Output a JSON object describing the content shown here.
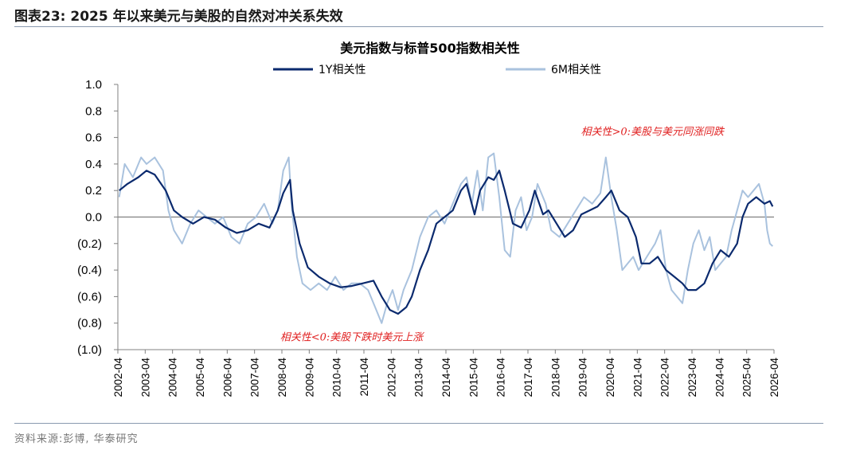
{
  "header": {
    "figure_title": "图表23:  2025 年以来美元与美股的自然对冲关系失效"
  },
  "source": "资料来源:彭博, 华泰研究",
  "colors": {
    "series_1y": "#0b2a6e",
    "series_6m": "#a9c2de",
    "zero_line": "#808080",
    "annotation": "#e02020",
    "rule": "#8a9ab0"
  },
  "chart_data": {
    "type": "line",
    "title": "美元指数与标普500指数相关性",
    "legend_position": "top",
    "ylim": [
      -1.0,
      1.0
    ],
    "yticks": [
      1.0,
      0.8,
      0.6,
      0.4,
      0.2,
      0.0,
      -0.2,
      -0.4,
      -0.6,
      -0.8,
      -1.0
    ],
    "ytick_labels": [
      "1.0",
      "0.8",
      "0.6",
      "0.4",
      "0.2",
      "0.0",
      "(0.2)",
      "(0.4)",
      "(0.6)",
      "(0.8)",
      "(1.0)"
    ],
    "xlim": [
      2002.25,
      2026.25
    ],
    "xtick_labels": [
      "2002-04",
      "2003-04",
      "2004-04",
      "2005-04",
      "2006-04",
      "2007-04",
      "2008-04",
      "2009-04",
      "2010-04",
      "2011-04",
      "2012-04",
      "2013-04",
      "2014-04",
      "2015-04",
      "2016-04",
      "2017-04",
      "2018-04",
      "2019-04",
      "2020-04",
      "2021-04",
      "2022-04",
      "2023-04",
      "2024-04",
      "2025-04",
      "2026-04"
    ],
    "annotations": [
      {
        "text": "相关性>0:美股与美元同涨同跌",
        "x": 2021.8,
        "y": 0.62
      },
      {
        "text": "相关性<0:美股下跌时美元上涨",
        "x": 2010.8,
        "y": -0.93
      }
    ],
    "series": [
      {
        "name": "1Y相关性",
        "x": [
          2002.3,
          2002.6,
          2003.0,
          2003.3,
          2003.6,
          2004.0,
          2004.3,
          2004.6,
          2005.0,
          2005.4,
          2005.8,
          2006.2,
          2006.6,
          2007.0,
          2007.4,
          2007.8,
          2008.1,
          2008.3,
          2008.55,
          2008.65,
          2008.9,
          2009.2,
          2009.6,
          2010.0,
          2010.4,
          2010.8,
          2011.2,
          2011.6,
          2011.9,
          2012.2,
          2012.5,
          2012.8,
          2013.0,
          2013.3,
          2013.6,
          2013.9,
          2014.2,
          2014.5,
          2014.8,
          2015.0,
          2015.3,
          2015.5,
          2015.8,
          2016.0,
          2016.2,
          2016.4,
          2016.7,
          2017.0,
          2017.3,
          2017.5,
          2017.8,
          2018.0,
          2018.3,
          2018.6,
          2018.9,
          2019.2,
          2019.5,
          2019.8,
          2020.1,
          2020.3,
          2020.6,
          2020.9,
          2021.0,
          2021.2,
          2021.4,
          2021.7,
          2022.0,
          2022.3,
          2022.6,
          2022.9,
          2023.1,
          2023.4,
          2023.7,
          2024.0,
          2024.3,
          2024.6,
          2024.9,
          2025.1,
          2025.3,
          2025.6,
          2025.9,
          2026.1,
          2026.2
        ],
        "values": [
          0.2,
          0.25,
          0.3,
          0.35,
          0.32,
          0.2,
          0.05,
          0.0,
          -0.05,
          0.0,
          -0.02,
          -0.08,
          -0.12,
          -0.1,
          -0.05,
          -0.08,
          0.05,
          0.18,
          0.28,
          0.05,
          -0.2,
          -0.38,
          -0.45,
          -0.5,
          -0.53,
          -0.52,
          -0.5,
          -0.48,
          -0.6,
          -0.7,
          -0.73,
          -0.68,
          -0.6,
          -0.4,
          -0.25,
          -0.05,
          0.0,
          0.05,
          0.2,
          0.25,
          0.02,
          0.2,
          0.3,
          0.28,
          0.35,
          0.2,
          -0.05,
          -0.08,
          0.05,
          0.2,
          0.02,
          0.05,
          -0.05,
          -0.15,
          -0.1,
          0.02,
          0.05,
          0.08,
          0.15,
          0.2,
          0.05,
          0.0,
          -0.05,
          -0.15,
          -0.35,
          -0.35,
          -0.3,
          -0.4,
          -0.45,
          -0.5,
          -0.55,
          -0.55,
          -0.5,
          -0.35,
          -0.25,
          -0.3,
          -0.2,
          0.0,
          0.1,
          0.15,
          0.1,
          0.12,
          0.08
        ]
      },
      {
        "name": "6M相关性",
        "x": [
          2002.3,
          2002.5,
          2002.8,
          2003.1,
          2003.3,
          2003.6,
          2003.9,
          2004.1,
          2004.3,
          2004.6,
          2004.9,
          2005.2,
          2005.5,
          2005.8,
          2006.1,
          2006.4,
          2006.7,
          2007.0,
          2007.3,
          2007.6,
          2007.9,
          2008.1,
          2008.3,
          2008.5,
          2008.6,
          2008.8,
          2009.0,
          2009.3,
          2009.6,
          2009.9,
          2010.2,
          2010.5,
          2010.8,
          2011.1,
          2011.4,
          2011.7,
          2011.9,
          2012.1,
          2012.3,
          2012.5,
          2012.7,
          2013.0,
          2013.3,
          2013.6,
          2013.9,
          2014.2,
          2014.5,
          2014.8,
          2015.0,
          2015.2,
          2015.4,
          2015.6,
          2015.8,
          2016.0,
          2016.2,
          2016.4,
          2016.6,
          2016.8,
          2017.0,
          2017.2,
          2017.4,
          2017.6,
          2017.9,
          2018.1,
          2018.4,
          2018.7,
          2019.0,
          2019.3,
          2019.6,
          2019.9,
          2020.1,
          2020.3,
          2020.5,
          2020.7,
          2020.9,
          2021.1,
          2021.3,
          2021.6,
          2021.9,
          2022.1,
          2022.3,
          2022.5,
          2022.7,
          2022.9,
          2023.1,
          2023.3,
          2023.5,
          2023.7,
          2023.9,
          2024.1,
          2024.3,
          2024.5,
          2024.7,
          2024.9,
          2025.1,
          2025.3,
          2025.5,
          2025.7,
          2025.9,
          2026.0,
          2026.1,
          2026.2
        ],
        "values": [
          0.15,
          0.4,
          0.3,
          0.45,
          0.4,
          0.45,
          0.35,
          0.05,
          -0.1,
          -0.2,
          -0.05,
          0.05,
          0.0,
          -0.05,
          0.0,
          -0.15,
          -0.2,
          -0.05,
          0.0,
          0.1,
          -0.05,
          0.05,
          0.35,
          0.45,
          0.1,
          -0.3,
          -0.5,
          -0.55,
          -0.5,
          -0.55,
          -0.45,
          -0.55,
          -0.5,
          -0.5,
          -0.55,
          -0.7,
          -0.8,
          -0.65,
          -0.55,
          -0.7,
          -0.55,
          -0.4,
          -0.15,
          0.0,
          0.05,
          -0.05,
          0.1,
          0.25,
          0.3,
          0.1,
          0.35,
          0.05,
          0.45,
          0.48,
          0.15,
          -0.25,
          -0.3,
          0.05,
          0.15,
          -0.1,
          0.0,
          0.25,
          0.1,
          -0.1,
          -0.15,
          -0.05,
          0.05,
          0.15,
          0.1,
          0.18,
          0.45,
          0.15,
          -0.1,
          -0.4,
          -0.35,
          -0.3,
          -0.4,
          -0.3,
          -0.2,
          -0.1,
          -0.4,
          -0.55,
          -0.6,
          -0.65,
          -0.4,
          -0.2,
          -0.1,
          -0.25,
          -0.15,
          -0.4,
          -0.35,
          -0.3,
          -0.1,
          0.05,
          0.2,
          0.15,
          0.2,
          0.25,
          0.1,
          -0.1,
          -0.2,
          -0.22
        ]
      }
    ]
  }
}
